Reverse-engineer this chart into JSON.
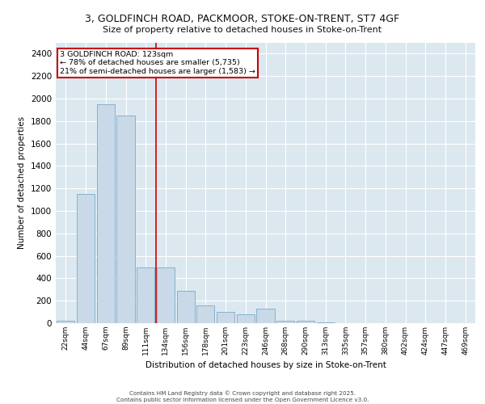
{
  "title_line1": "3, GOLDFINCH ROAD, PACKMOOR, STOKE-ON-TRENT, ST7 4GF",
  "title_line2": "Size of property relative to detached houses in Stoke-on-Trent",
  "xlabel": "Distribution of detached houses by size in Stoke-on-Trent",
  "ylabel": "Number of detached properties",
  "categories": [
    "22sqm",
    "44sqm",
    "67sqm",
    "89sqm",
    "111sqm",
    "134sqm",
    "156sqm",
    "178sqm",
    "201sqm",
    "223sqm",
    "246sqm",
    "268sqm",
    "290sqm",
    "313sqm",
    "335sqm",
    "357sqm",
    "380sqm",
    "402sqm",
    "424sqm",
    "447sqm",
    "469sqm"
  ],
  "values": [
    20,
    1150,
    1950,
    1850,
    500,
    500,
    290,
    160,
    100,
    80,
    130,
    25,
    20,
    8,
    3,
    2,
    1,
    1,
    0,
    0,
    0
  ],
  "bar_color": "#c9d9e8",
  "bar_edge_color": "#7aaac8",
  "background_color": "#dce8f0",
  "grid_color": "#ffffff",
  "annotation_text": "3 GOLDFINCH ROAD: 123sqm\n← 78% of detached houses are smaller (5,735)\n21% of semi-detached houses are larger (1,583) →",
  "annotation_box_color": "#ffffff",
  "annotation_border_color": "#cc0000",
  "vline_x": 4.5,
  "vline_color": "#cc0000",
  "ylim": [
    0,
    2500
  ],
  "yticks": [
    0,
    200,
    400,
    600,
    800,
    1000,
    1200,
    1400,
    1600,
    1800,
    2000,
    2200,
    2400
  ],
  "footer_line1": "Contains HM Land Registry data © Crown copyright and database right 2025.",
  "footer_line2": "Contains public sector information licensed under the Open Government Licence v3.0."
}
